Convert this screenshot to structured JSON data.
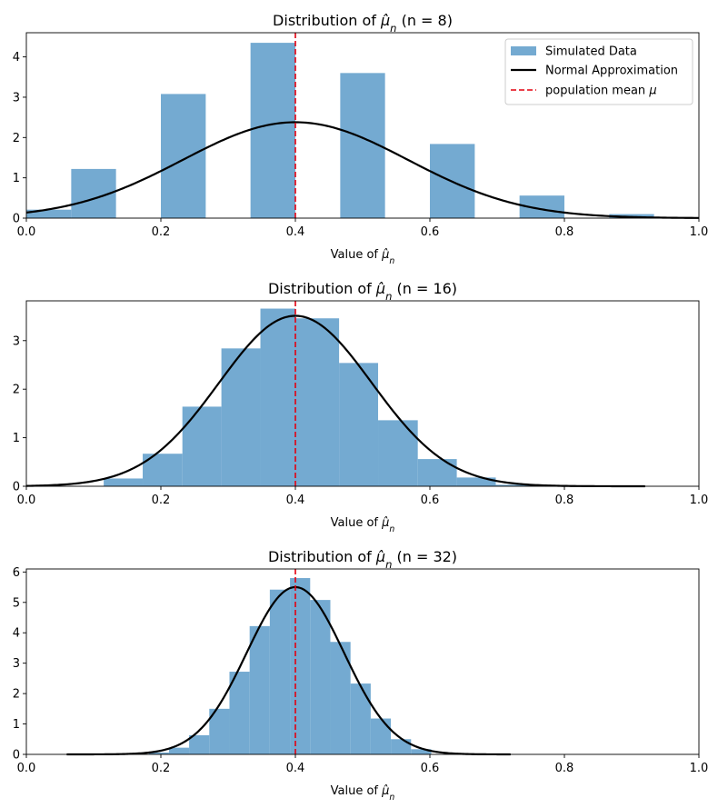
{
  "colors": {
    "hist": "#74aad1",
    "normal": "#000000",
    "mean": "#e3000f"
  },
  "legend": {
    "placement": "top-right",
    "items": [
      "Simulated Data",
      "Normal Approximation",
      "population mean"
    ]
  },
  "chart_data": [
    {
      "type": "bar",
      "title": "Distribution of",
      "title_n": "(n = 8)",
      "xlabel": "Value of",
      "xlim": [
        0,
        1
      ],
      "ylim": [
        0,
        4.6
      ],
      "xticks": [
        "0.0",
        "0.2",
        "0.4",
        "0.6",
        "0.8",
        "1.0"
      ],
      "yticks": [
        "0",
        "1",
        "2",
        "3",
        "4"
      ],
      "population_mean": 0.4,
      "normal": {
        "mean": 0.4,
        "sd": 0.1677
      },
      "normal_range": [
        0,
        1
      ],
      "histogram": [
        {
          "x0": 0.0,
          "x1": 0.0667,
          "density": 0.21
        },
        {
          "x0": 0.0667,
          "x1": 0.1333,
          "density": 1.22
        },
        {
          "x0": 0.2,
          "x1": 0.2667,
          "density": 3.08
        },
        {
          "x0": 0.3333,
          "x1": 0.4,
          "density": 4.35
        },
        {
          "x0": 0.4667,
          "x1": 0.5333,
          "density": 3.6
        },
        {
          "x0": 0.6,
          "x1": 0.6667,
          "density": 1.84
        },
        {
          "x0": 0.7333,
          "x1": 0.8,
          "density": 0.56
        },
        {
          "x0": 0.8667,
          "x1": 0.9333,
          "density": 0.1
        }
      ]
    },
    {
      "type": "bar",
      "title": "Distribution of",
      "title_n": "(n = 16)",
      "xlabel": "Value of",
      "xlim": [
        0,
        1
      ],
      "ylim": [
        0,
        3.82
      ],
      "xticks": [
        "0.0",
        "0.2",
        "0.4",
        "0.6",
        "0.8",
        "1.0"
      ],
      "yticks": [
        "0",
        "1",
        "2",
        "3"
      ],
      "population_mean": 0.4,
      "normal": {
        "mean": 0.4,
        "sd": 0.1136
      },
      "normal_range": [
        0,
        0.92
      ],
      "histogram": [
        {
          "x0": 0.115,
          "x1": 0.173,
          "density": 0.16
        },
        {
          "x0": 0.173,
          "x1": 0.232,
          "density": 0.67
        },
        {
          "x0": 0.232,
          "x1": 0.29,
          "density": 1.64
        },
        {
          "x0": 0.29,
          "x1": 0.348,
          "density": 2.84
        },
        {
          "x0": 0.348,
          "x1": 0.4,
          "density": 3.66
        },
        {
          "x0": 0.4,
          "x1": 0.465,
          "density": 3.46
        },
        {
          "x0": 0.465,
          "x1": 0.523,
          "density": 2.54
        },
        {
          "x0": 0.523,
          "x1": 0.582,
          "density": 1.36
        },
        {
          "x0": 0.582,
          "x1": 0.64,
          "density": 0.56
        },
        {
          "x0": 0.64,
          "x1": 0.698,
          "density": 0.18
        },
        {
          "x0": 0.698,
          "x1": 0.757,
          "density": 0.03
        }
      ]
    },
    {
      "type": "bar",
      "title": "Distribution of",
      "title_n": "(n = 32)",
      "xlabel": "Value of",
      "xlim": [
        0,
        1
      ],
      "ylim": [
        0,
        6.1
      ],
      "xticks": [
        "0.0",
        "0.2",
        "0.4",
        "0.6",
        "0.8",
        "1.0"
      ],
      "yticks": [
        "0",
        "1",
        "2",
        "3",
        "4",
        "5",
        "6"
      ],
      "population_mean": 0.4,
      "normal": {
        "mean": 0.4,
        "sd": 0.0725
      },
      "normal_range": [
        0.06,
        0.72
      ],
      "histogram": [
        {
          "x0": 0.182,
          "x1": 0.212,
          "density": 0.06
        },
        {
          "x0": 0.212,
          "x1": 0.242,
          "density": 0.22
        },
        {
          "x0": 0.242,
          "x1": 0.272,
          "density": 0.63
        },
        {
          "x0": 0.272,
          "x1": 0.302,
          "density": 1.5
        },
        {
          "x0": 0.302,
          "x1": 0.332,
          "density": 2.72
        },
        {
          "x0": 0.332,
          "x1": 0.362,
          "density": 4.22
        },
        {
          "x0": 0.362,
          "x1": 0.392,
          "density": 5.42
        },
        {
          "x0": 0.392,
          "x1": 0.422,
          "density": 5.8
        },
        {
          "x0": 0.422,
          "x1": 0.452,
          "density": 5.08
        },
        {
          "x0": 0.452,
          "x1": 0.482,
          "density": 3.7
        },
        {
          "x0": 0.482,
          "x1": 0.512,
          "density": 2.33
        },
        {
          "x0": 0.512,
          "x1": 0.542,
          "density": 1.18
        },
        {
          "x0": 0.542,
          "x1": 0.572,
          "density": 0.5
        },
        {
          "x0": 0.572,
          "x1": 0.602,
          "density": 0.17
        }
      ]
    }
  ]
}
